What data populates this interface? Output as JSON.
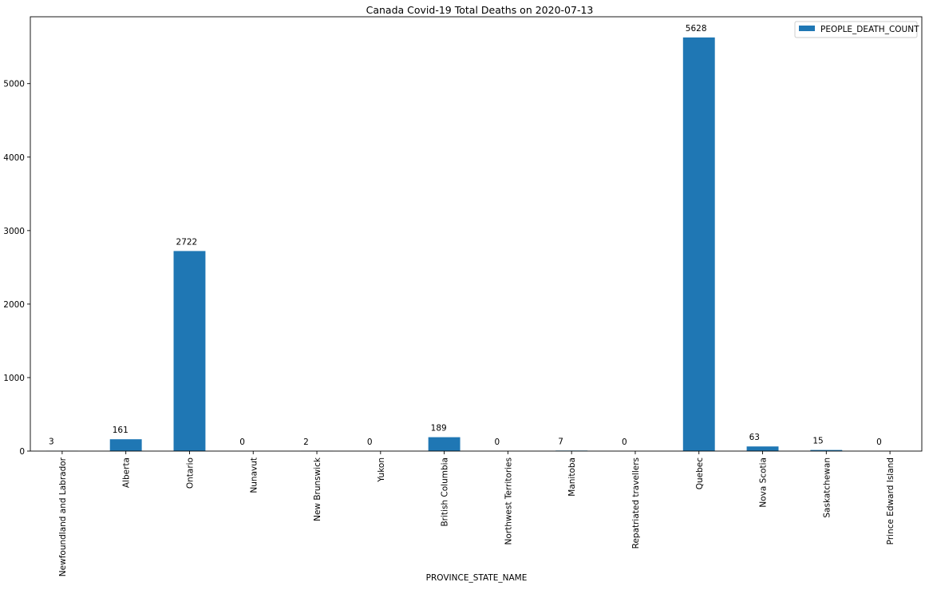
{
  "chart_data": {
    "type": "bar",
    "title": "Canada Covid-19 Total Deaths on 2020-07-13",
    "xlabel": "PROVINCE_STATE_NAME",
    "ylabel": "",
    "categories": [
      "Newfoundland and Labrador",
      "Alberta",
      "Ontario",
      "Nunavut",
      "New Brunswick",
      "Yukon",
      "British Columbia",
      "Northwest Territories",
      "Manitoba",
      "Repatriated travellers",
      "Quebec",
      "Nova Scotia",
      "Saskatchewan",
      "Prince Edward Island"
    ],
    "series": [
      {
        "name": "PEOPLE_DEATH_COUNT",
        "values": [
          3,
          161,
          2722,
          0,
          2,
          0,
          189,
          0,
          7,
          0,
          5628,
          63,
          15,
          0
        ],
        "color": "#1f77b4"
      }
    ],
    "ylim": [
      0,
      5909.4
    ],
    "yticks": [
      0,
      1000,
      2000,
      3000,
      4000,
      5000
    ],
    "legend": "top-right",
    "grid": false
  }
}
